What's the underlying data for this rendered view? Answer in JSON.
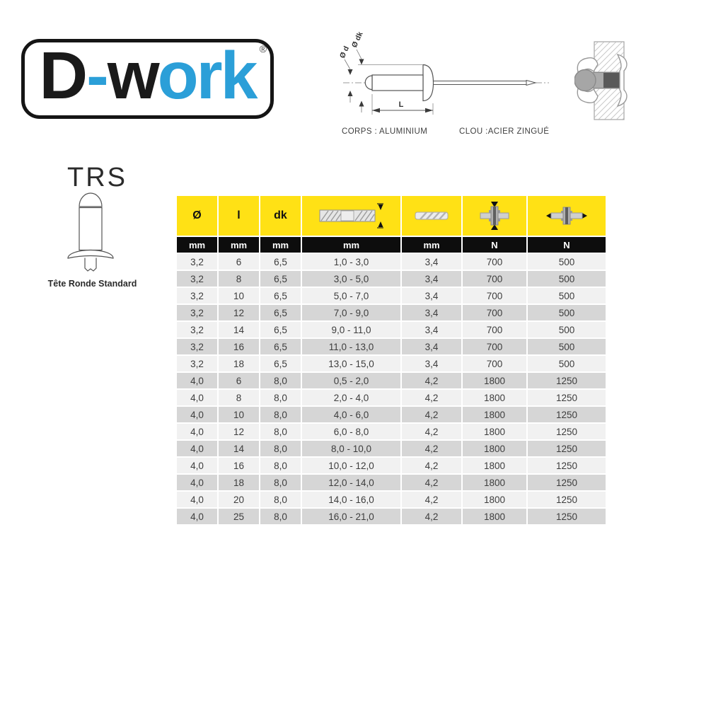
{
  "brand": {
    "logo_parts": [
      {
        "text": "D",
        "color": "black"
      },
      {
        "text": "-",
        "color": "blue"
      },
      {
        "text": "w",
        "color": "black"
      },
      {
        "text": "ork",
        "color": "blue"
      }
    ],
    "registered_mark": "®"
  },
  "product": {
    "code": "TRS",
    "head_type": "Tête Ronde Standard"
  },
  "rivet_diagram": {
    "label_d": "Ø d",
    "label_dk": "Ø dk",
    "label_length": "L",
    "body_material": "CORPS : ALUMINIUM",
    "nail_material": "CLOU :ACIER ZINGUÉ"
  },
  "spec_table": {
    "columns": [
      {
        "header": "Ø",
        "unit": "mm",
        "icon": null
      },
      {
        "header": "l",
        "unit": "mm",
        "icon": null
      },
      {
        "header": "dk",
        "unit": "mm",
        "icon": null
      },
      {
        "header": "",
        "unit": "mm",
        "icon": "grip-range-icon"
      },
      {
        "header": "",
        "unit": "mm",
        "icon": "drill-bit-icon"
      },
      {
        "header": "",
        "unit": "N",
        "icon": "shear-strength-icon"
      },
      {
        "header": "",
        "unit": "N",
        "icon": "tensile-strength-icon"
      }
    ],
    "rows": [
      [
        "3,2",
        "6",
        "6,5",
        "1,0 - 3,0",
        "3,4",
        "700",
        "500"
      ],
      [
        "3,2",
        "8",
        "6,5",
        "3,0 - 5,0",
        "3,4",
        "700",
        "500"
      ],
      [
        "3,2",
        "10",
        "6,5",
        "5,0 - 7,0",
        "3,4",
        "700",
        "500"
      ],
      [
        "3,2",
        "12",
        "6,5",
        "7,0 - 9,0",
        "3,4",
        "700",
        "500"
      ],
      [
        "3,2",
        "14",
        "6,5",
        "9,0 - 11,0",
        "3,4",
        "700",
        "500"
      ],
      [
        "3,2",
        "16",
        "6,5",
        "11,0 - 13,0",
        "3,4",
        "700",
        "500"
      ],
      [
        "3,2",
        "18",
        "6,5",
        "13,0 - 15,0",
        "3,4",
        "700",
        "500"
      ],
      [
        "4,0",
        "6",
        "8,0",
        "0,5 - 2,0",
        "4,2",
        "1800",
        "1250"
      ],
      [
        "4,0",
        "8",
        "8,0",
        "2,0 - 4,0",
        "4,2",
        "1800",
        "1250"
      ],
      [
        "4,0",
        "10",
        "8,0",
        "4,0 - 6,0",
        "4,2",
        "1800",
        "1250"
      ],
      [
        "4,0",
        "12",
        "8,0",
        "6,0 - 8,0",
        "4,2",
        "1800",
        "1250"
      ],
      [
        "4,0",
        "14",
        "8,0",
        "8,0 - 10,0",
        "4,2",
        "1800",
        "1250"
      ],
      [
        "4,0",
        "16",
        "8,0",
        "10,0 - 12,0",
        "4,2",
        "1800",
        "1250"
      ],
      [
        "4,0",
        "18",
        "8,0",
        "12,0 - 14,0",
        "4,2",
        "1800",
        "1250"
      ],
      [
        "4,0",
        "20",
        "8,0",
        "14,0 - 16,0",
        "4,2",
        "1800",
        "1250"
      ],
      [
        "4,0",
        "25",
        "8,0",
        "16,0 - 21,0",
        "4,2",
        "1800",
        "1250"
      ]
    ]
  },
  "colors": {
    "brand_blue": "#2b9fd8",
    "header_yellow": "#ffe115",
    "header_black": "#0d0d0d",
    "row_light": "#f1f1f1",
    "row_dark": "#d6d6d6",
    "text_dark": "#3d3d3d"
  }
}
